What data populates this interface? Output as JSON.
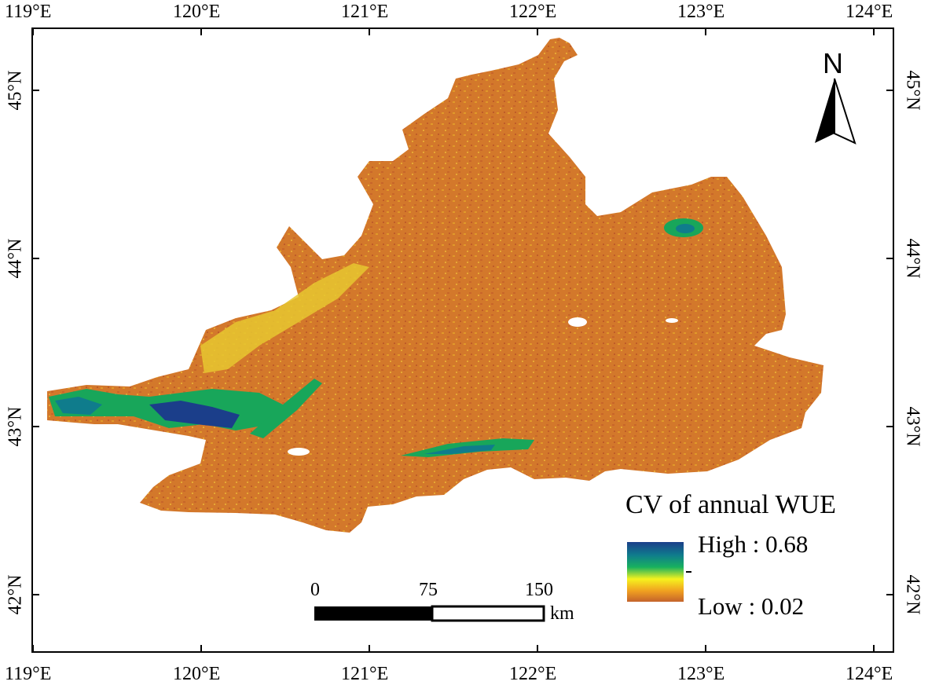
{
  "map": {
    "lon_labels": [
      "119°E",
      "120°E",
      "121°E",
      "122°E",
      "123°E",
      "124°E"
    ],
    "lat_labels": [
      "45°N",
      "44°N",
      "43°N",
      "42°N"
    ],
    "north_label": "N",
    "legend": {
      "title": "CV of annual WUE",
      "high_label": "High : 0.68",
      "low_label": "Low : 0.02",
      "colors": [
        "#1b3e8a",
        "#0f7c8c",
        "#18b15f",
        "#f6f21e",
        "#f0a020",
        "#c4632b"
      ]
    },
    "scale_bar": {
      "ticks": [
        "0",
        "75",
        "150"
      ],
      "unit": "km"
    },
    "region_fill": "#d3782b"
  }
}
